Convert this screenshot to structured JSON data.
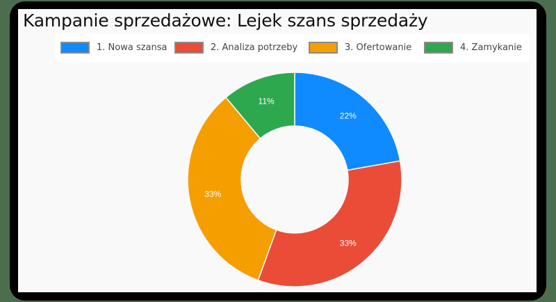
{
  "title": "Kampanie sprzedażowe: Lejek szans sprzedaży",
  "legend": [
    {
      "label": "1. Nowa szansa",
      "color": "#0f8aff"
    },
    {
      "label": "2. Analiza potrzeby",
      "color": "#ea4c38"
    },
    {
      "label": "3. Ofertowanie",
      "color": "#f59e00"
    },
    {
      "label": "4. Zamykanie",
      "color": "#2ea84f"
    }
  ],
  "chart_data": {
    "type": "pie",
    "variant": "donut",
    "title": "Kampanie sprzedażowe: Lejek szans sprzedaży",
    "categories": [
      "1. Nowa szansa",
      "2. Analiza potrzeby",
      "3. Ofertowanie",
      "4. Zamykanie"
    ],
    "values": [
      22,
      33,
      33,
      11
    ],
    "labels": [
      "22%",
      "33%",
      "33%",
      "11%"
    ],
    "colors": [
      "#0f8aff",
      "#ea4c38",
      "#f59e00",
      "#2ea84f"
    ],
    "legend_position": "top",
    "start_angle_deg": 0,
    "direction": "clockwise"
  }
}
